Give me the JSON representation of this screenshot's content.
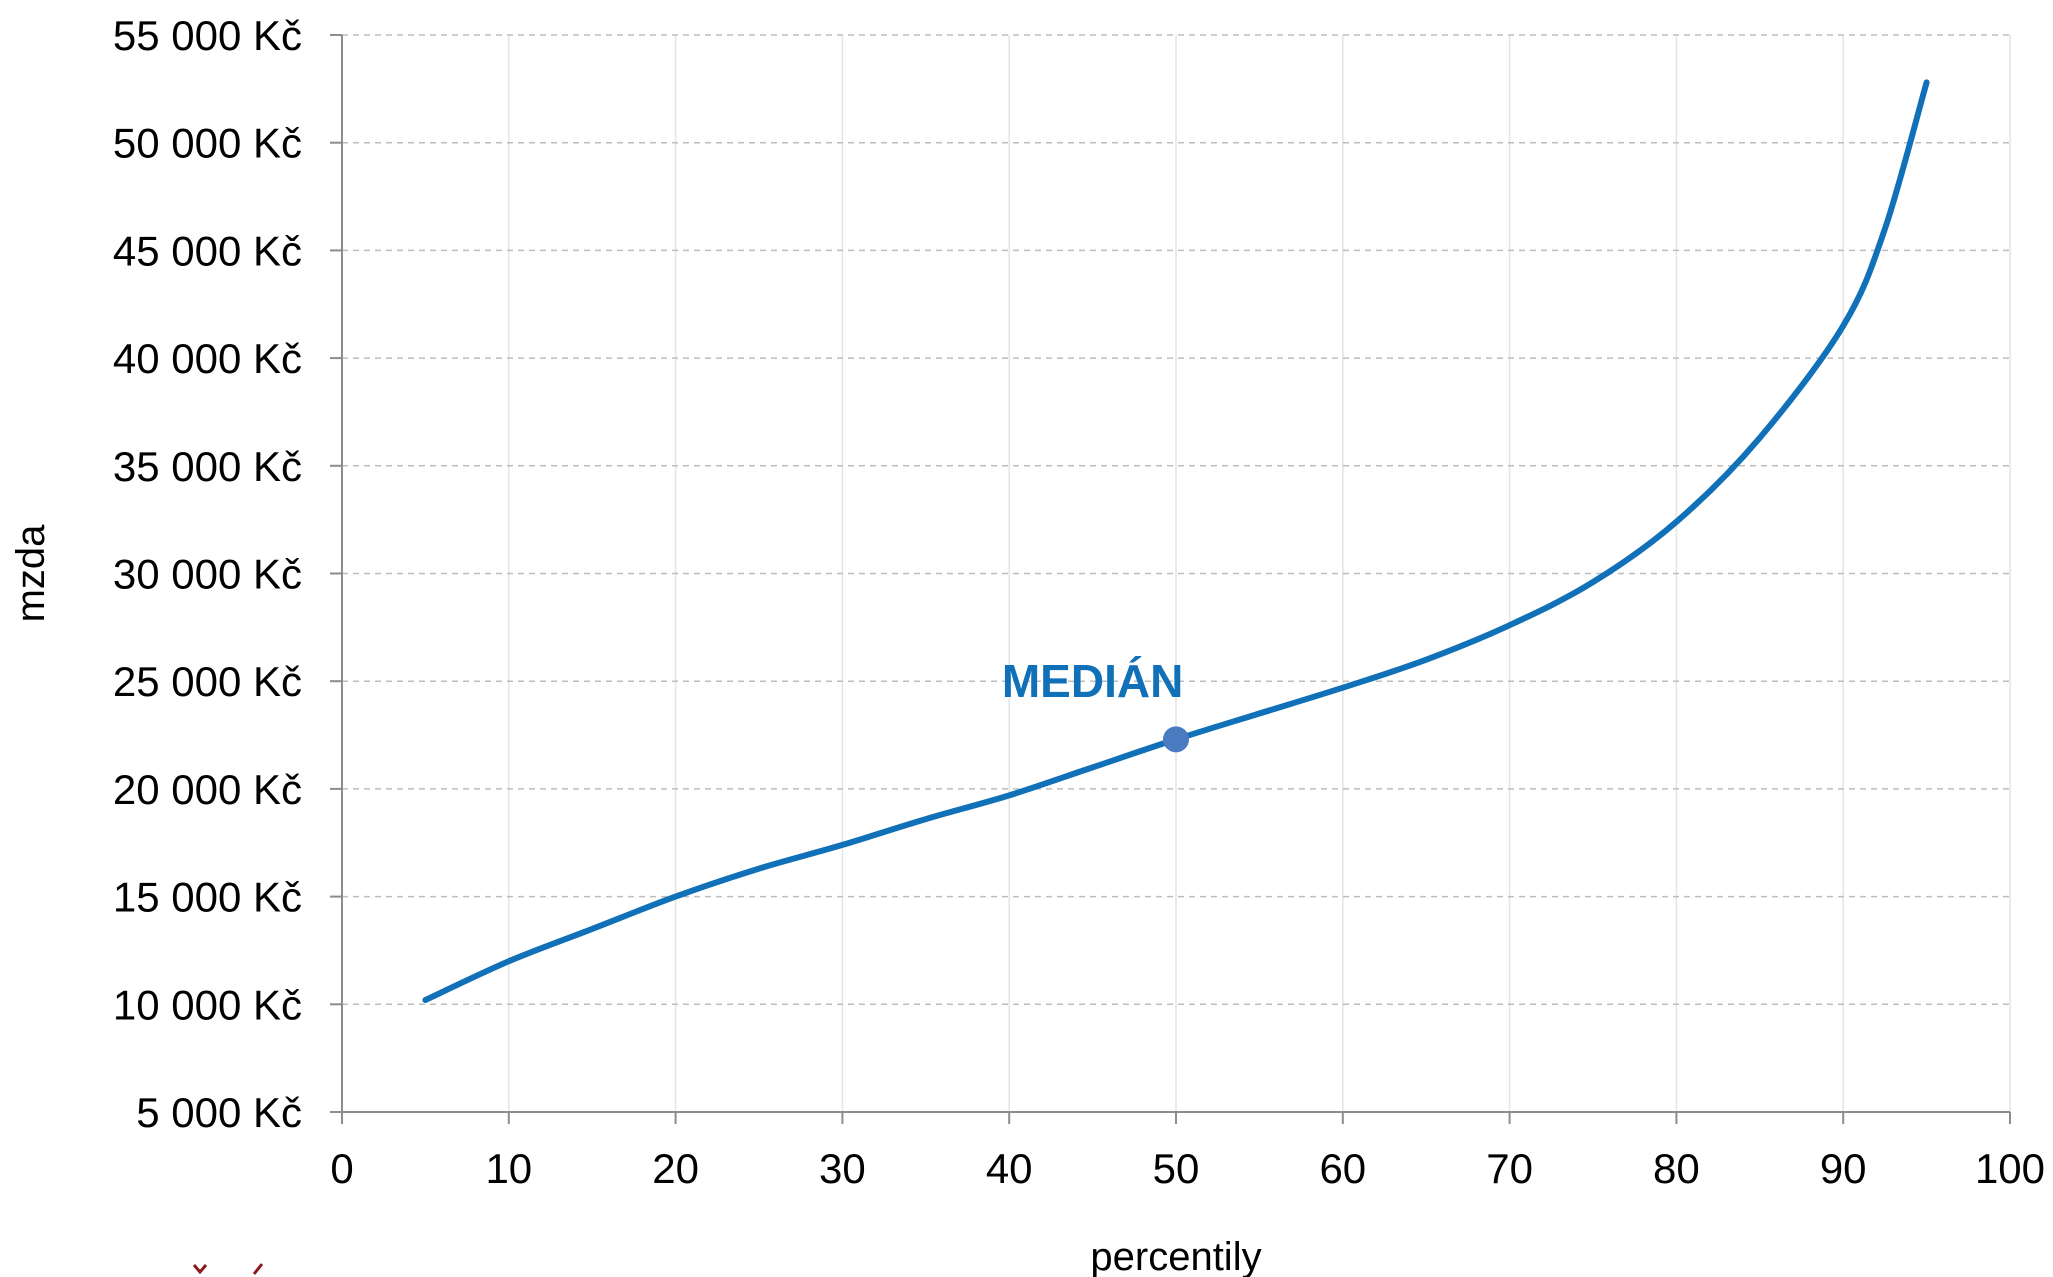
{
  "chart_data": {
    "type": "line",
    "xlabel": "percentily",
    "ylabel": "mzda",
    "xlim": [
      0,
      100
    ],
    "ylim": [
      5000,
      55000
    ],
    "x_ticks": [
      0,
      10,
      20,
      30,
      40,
      50,
      60,
      70,
      80,
      90,
      100
    ],
    "x_tick_labels": [
      "0",
      "10",
      "20",
      "30",
      "40",
      "50",
      "60",
      "70",
      "80",
      "90",
      "100"
    ],
    "y_ticks": [
      5000,
      10000,
      15000,
      20000,
      25000,
      30000,
      35000,
      40000,
      45000,
      50000,
      55000
    ],
    "y_tick_labels": [
      "5 000 Kč",
      "10 000 Kč",
      "15 000 Kč",
      "20 000 Kč",
      "25 000 Kč",
      "30 000 Kč",
      "35 000 Kč",
      "40 000 Kč",
      "45 000 Kč",
      "50 000 Kč",
      "55 000 Kč"
    ],
    "grid": true,
    "legend": "none",
    "series": [
      {
        "color": "#1070b8",
        "x": [
          5,
          10,
          15,
          20,
          25,
          30,
          35,
          40,
          45,
          50,
          55,
          60,
          65,
          70,
          75,
          80,
          85,
          90,
          92.5,
          95
        ],
        "y": [
          10200,
          12000,
          13500,
          15000,
          16300,
          17400,
          18600,
          19700,
          21000,
          22300,
          23500,
          24700,
          26000,
          27600,
          29600,
          32400,
          36300,
          41500,
          46000,
          52800
        ]
      }
    ],
    "median_point": {
      "x": 50,
      "y": 22300,
      "color": "#4a7bc0"
    },
    "annotation": {
      "text": "MEDIÁN",
      "x": 45,
      "y": 25000,
      "color": "#1070b8"
    }
  }
}
